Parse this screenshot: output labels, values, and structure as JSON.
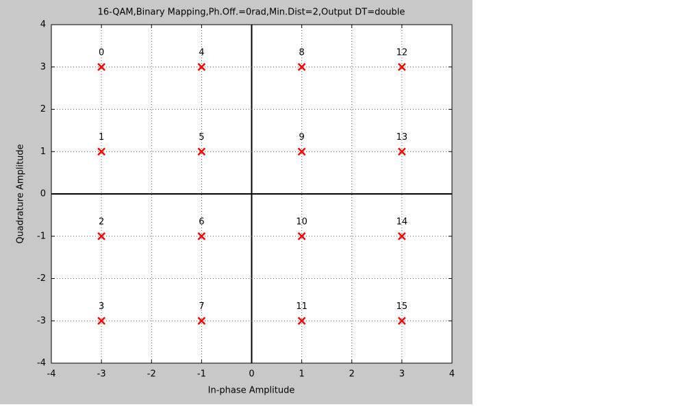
{
  "chart_data": {
    "type": "scatter",
    "title": "16-QAM,Binary Mapping,Ph.Off.=0rad,Min.Dist=2,Output DT=double",
    "xlabel": "In-phase Amplitude",
    "ylabel": "Quadrature Amplitude",
    "x": [
      -3,
      -3,
      -3,
      -3,
      -1,
      -1,
      -1,
      -1,
      1,
      1,
      1,
      1,
      3,
      3,
      3,
      3
    ],
    "values": [
      3,
      1,
      -1,
      -3,
      3,
      1,
      -1,
      -3,
      3,
      1,
      -1,
      -3,
      3,
      1,
      -1,
      -3
    ],
    "labels": [
      "0",
      "1",
      "2",
      "3",
      "4",
      "5",
      "6",
      "7",
      "8",
      "9",
      "10",
      "11",
      "12",
      "13",
      "14",
      "15"
    ],
    "color": "#ff0000",
    "marker": "x",
    "xlim": [
      -4,
      4
    ],
    "ylim": [
      -4,
      4
    ],
    "xticks": [
      -4,
      -3,
      -2,
      -1,
      0,
      1,
      2,
      3,
      4
    ],
    "yticks": [
      -4,
      -3,
      -2,
      -1,
      0,
      1,
      2,
      3,
      4
    ],
    "grid": true
  }
}
